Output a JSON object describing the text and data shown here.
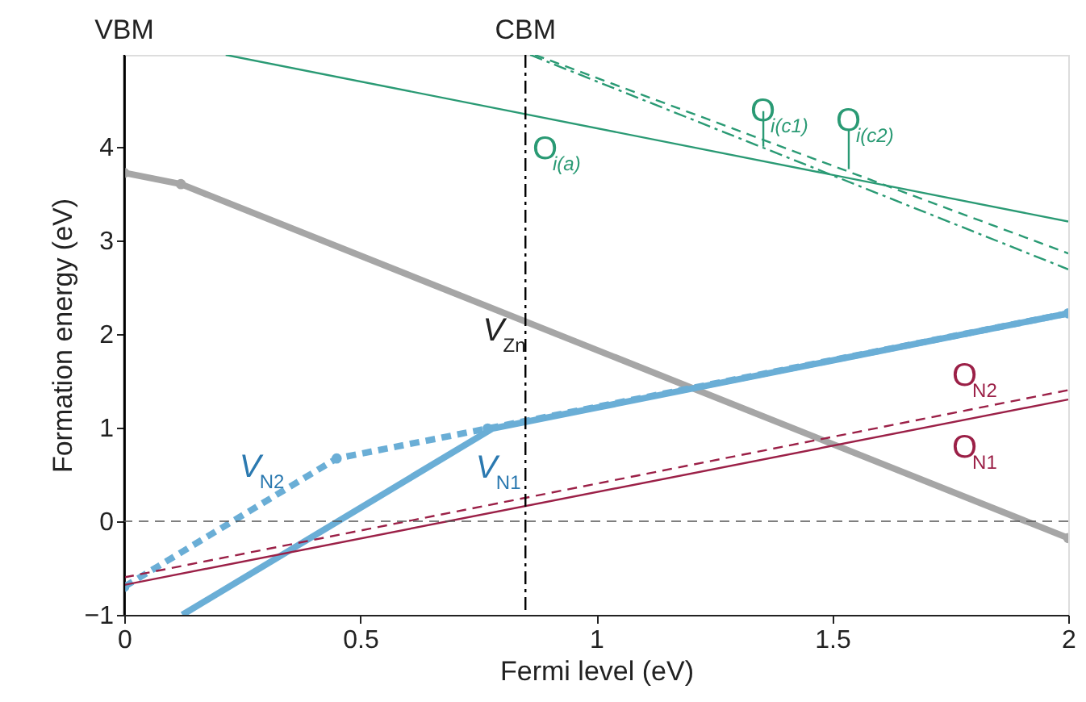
{
  "chart_data": {
    "type": "line",
    "xlabel": "Fermi level (eV)",
    "ylabel": "Formation energy (eV)",
    "xlim": [
      0,
      2
    ],
    "ylim": [
      -1,
      4.98
    ],
    "xticks": [
      0,
      0.5,
      1,
      1.5,
      2
    ],
    "yticks": [
      -1,
      0,
      1,
      2,
      3,
      4
    ],
    "grid": false,
    "series": [
      {
        "color": "#a6a6a6",
        "x": [
          0,
          0.12,
          2
        ],
        "values": [
          3.72,
          3.6,
          -0.18
        ],
        "marker": "circle"
      },
      {
        "color": "#6aaed6",
        "x": [
          0.123,
          0.78,
          2
        ],
        "values": [
          -1,
          0.99,
          2.22
        ]
      },
      {
        "color": "#6aaed6",
        "x": [
          0,
          0.45,
          0.77,
          2
        ],
        "values": [
          -0.7,
          0.67,
          0.99,
          2.22
        ],
        "line_style": "dashed",
        "marker": "circle"
      },
      {
        "color": "#2a9a74",
        "x": [
          0.215,
          2
        ],
        "values": [
          4.98,
          3.2
        ]
      },
      {
        "color": "#2a9a74",
        "x": [
          0.86,
          2
        ],
        "values": [
          4.98,
          2.69
        ],
        "line_style": "dashdot"
      },
      {
        "color": "#2a9a74",
        "x": [
          0.87,
          2
        ],
        "values": [
          4.98,
          2.86
        ],
        "line_style": "dashed"
      },
      {
        "color": "#9b2047",
        "x": [
          0,
          2
        ],
        "values": [
          -0.68,
          1.3
        ]
      },
      {
        "color": "#9b2047",
        "x": [
          0,
          2
        ],
        "values": [
          -0.6,
          1.4
        ],
        "line_style": "dashed"
      }
    ],
    "ref_lines": [
      {
        "axis": "x",
        "value": 0,
        "label": "VBM",
        "color": "#000000"
      },
      {
        "axis": "x",
        "value": 0.85,
        "label": "CBM",
        "color": "#000000",
        "line_style": "dashdot"
      },
      {
        "axis": "y",
        "value": 0,
        "color": "#555555",
        "line_style": "dashed"
      }
    ],
    "annotations": [
      {
        "text": "V$_{Zn}$",
        "x": 0.76,
        "y": 2.31
      },
      {
        "text": "V$_{N1}$",
        "x": 0.745,
        "y": 0.88
      },
      {
        "text": "V$_{N2}$",
        "x": 0.35,
        "y": 0.37
      },
      {
        "text": "O$_{i(a)}$",
        "x": 0.865,
        "y": 4.33
      },
      {
        "text": "O$_{i(c1)}$",
        "x": 1.354,
        "y": 4.0
      },
      {
        "text": "O$_{i(c2)}$",
        "x": 1.535,
        "y": 3.76
      },
      {
        "text": "O$_{N2}$",
        "x": 1.754,
        "y": 1.15
      },
      {
        "text": "O$_{N1}$",
        "x": 1.754,
        "y": 1.06
      }
    ]
  }
}
